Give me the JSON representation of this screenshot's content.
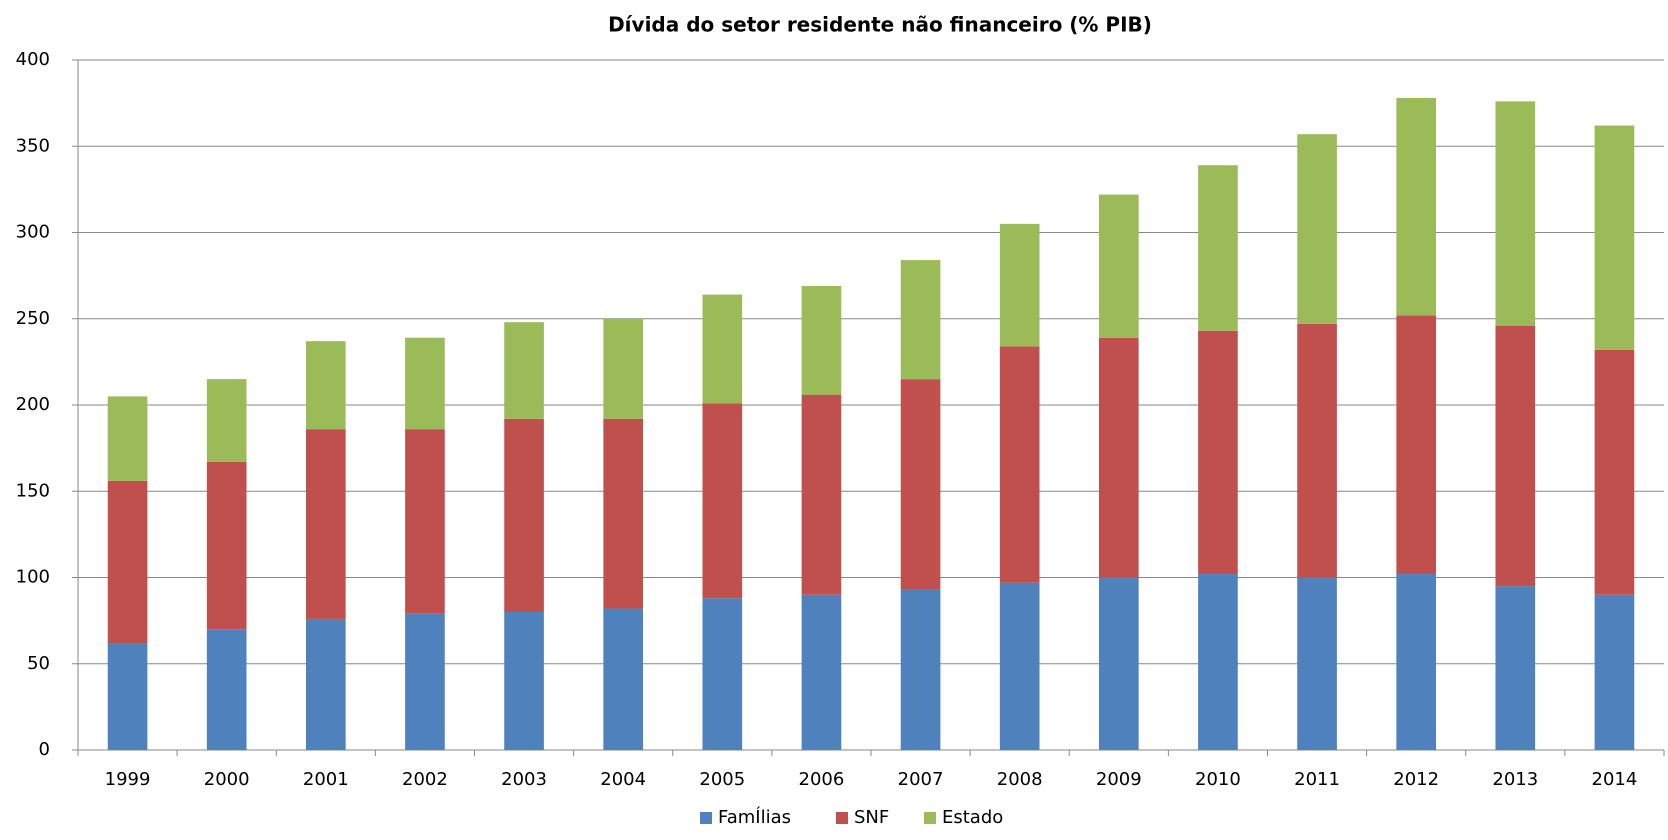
{
  "chart_data": {
    "type": "stacked-bar",
    "title": "Dívida do setor residente não financeiro (% PIB)",
    "categories": [
      "1999",
      "2000",
      "2001",
      "2002",
      "2003",
      "2004",
      "2005",
      "2006",
      "2007",
      "2008",
      "2009",
      "2010",
      "2011",
      "2012",
      "2013",
      "2014"
    ],
    "series": [
      {
        "name": "FamÍlias",
        "color": "#4f81bd",
        "values": [
          62,
          70,
          76,
          79,
          80,
          82,
          88,
          90,
          93,
          97,
          100,
          102,
          100,
          102,
          95,
          90
        ]
      },
      {
        "name": "SNF",
        "color": "#c0504d",
        "values": [
          94,
          97,
          110,
          107,
          112,
          110,
          113,
          116,
          122,
          137,
          139,
          141,
          147,
          150,
          151,
          142
        ]
      },
      {
        "name": "Estado",
        "color": "#9bbb59",
        "values": [
          49,
          48,
          51,
          53,
          56,
          58,
          63,
          63,
          69,
          71,
          83,
          96,
          110,
          126,
          130,
          130
        ]
      }
    ],
    "ylim": [
      0,
      400
    ],
    "yticks": [
      0,
      50,
      100,
      150,
      200,
      250,
      300,
      350,
      400
    ],
    "grid": true,
    "legend": "bottom"
  }
}
